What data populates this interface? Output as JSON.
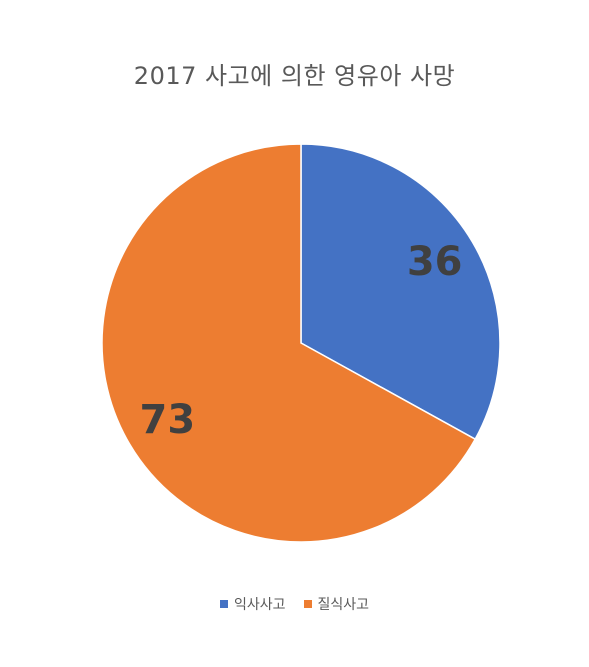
{
  "chart_data": {
    "type": "pie",
    "title": "2017 사고에 의한 영유아 사망",
    "categories": [
      "익사사고",
      "질식사고"
    ],
    "values": [
      36,
      73
    ],
    "colors": [
      "#4472C4",
      "#ED7D31"
    ],
    "data_labels": [
      "36",
      "73"
    ],
    "start_angle_deg": 0,
    "direction": "clockwise",
    "legend_position": "bottom"
  }
}
